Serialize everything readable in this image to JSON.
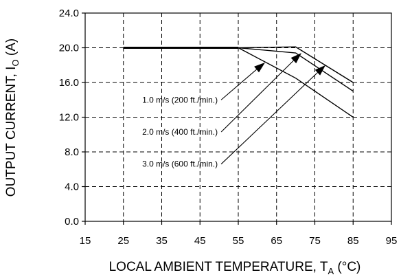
{
  "chart_data": {
    "type": "line",
    "title": "",
    "xlabel": {
      "main": "LOCAL AMBIENT TEMPERATURE, T",
      "sub": "A",
      "unit": " (°C)"
    },
    "ylabel": {
      "main": "OUTPUT CURRENT, I",
      "sub": "O",
      "unit": " (A)"
    },
    "xlim": [
      15,
      95
    ],
    "ylim": [
      0,
      24
    ],
    "xticks": [
      "15",
      "25",
      "35",
      "45",
      "55",
      "65",
      "75",
      "85",
      "95"
    ],
    "yticks": [
      "0.0",
      "4.0",
      "8.0",
      "12.0",
      "16.0",
      "20.0",
      "24.0"
    ],
    "grid": true,
    "series": [
      {
        "name": "1.0 m/s (200 ft./min.)",
        "x": [
          25,
          55,
          70,
          85
        ],
        "y": [
          20,
          20,
          16.5,
          12
        ]
      },
      {
        "name": "2.0 m/s (400 ft./min.)",
        "x": [
          25,
          55,
          70,
          85
        ],
        "y": [
          20,
          20,
          19.4,
          15
        ]
      },
      {
        "name": "3.0 m/s (600 ft./min.)",
        "x": [
          25,
          55,
          70,
          85
        ],
        "y": [
          20,
          20,
          20.1,
          16
        ]
      }
    ],
    "annotations": [
      {
        "text": "1.0 m/s (200 ft./min.)",
        "text_at": [
          50,
          14
        ],
        "arrow_to": [
          62,
          18.3
        ]
      },
      {
        "text": "2.0 m/s (400 ft./min.)",
        "text_at": [
          50,
          10.3
        ],
        "arrow_to": [
          71.5,
          19.4
        ]
      },
      {
        "text": "3.0 m/s (600 ft./min.)",
        "text_at": [
          50,
          6.6
        ],
        "arrow_to": [
          77.8,
          18
        ]
      }
    ]
  }
}
